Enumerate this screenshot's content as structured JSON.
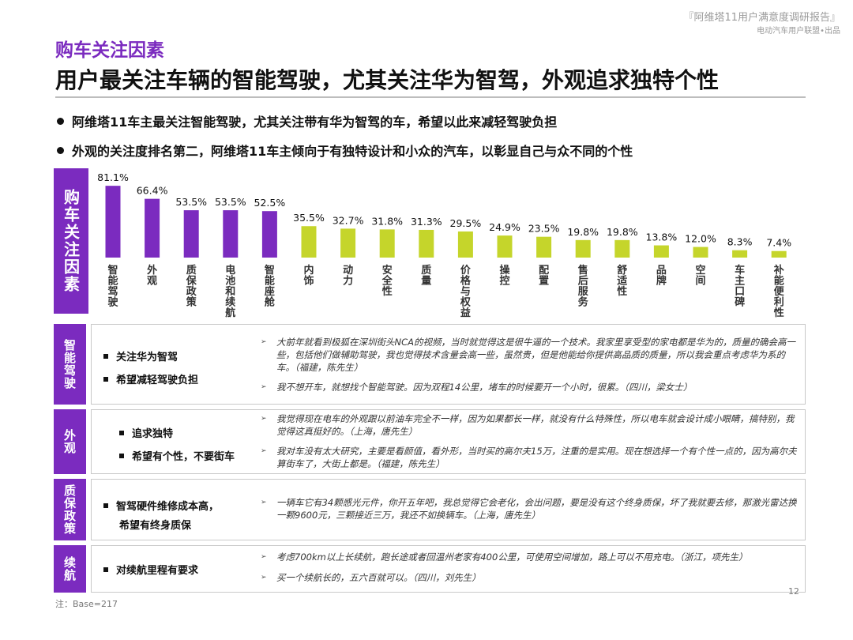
{
  "header": {
    "report_title": "『阿维塔11用户满意度调研报告』",
    "publisher": "电动汽车用户联盟•出品"
  },
  "section_label": "购车关注因素",
  "main_title": "用户最关注车辆的智能驾驶，尤其关注华为智驾，外观追求独特个性",
  "bullets": [
    "阿维塔11车主最关注智能驾驶，尤其关注带有华为智驾的车，希望以此来减轻驾驶负担",
    "外观的关注度排名第二，阿维塔11车主倾向于有独特设计和小众的汽车，以彰显自己与众不同的个性"
  ],
  "chart_side_label": "购车关注因素",
  "chart_data": {
    "type": "bar",
    "categories": [
      "智能驾驶",
      "外观",
      "质保政策",
      "电池和续航",
      "智能座舱",
      "内饰",
      "动力",
      "安全性",
      "质量",
      "价格与权益",
      "操控",
      "配置",
      "售后服务",
      "舒适性",
      "品牌",
      "空间",
      "车主口碑",
      "补能便利性"
    ],
    "values": [
      81.1,
      66.4,
      53.5,
      53.5,
      52.5,
      35.5,
      32.7,
      31.8,
      31.3,
      29.5,
      24.9,
      23.5,
      19.8,
      19.8,
      13.8,
      12.0,
      8.3,
      7.4
    ],
    "value_labels": [
      "81.1%",
      "66.4%",
      "53.5%",
      "53.5%",
      "52.5%",
      "35.5%",
      "32.7%",
      "31.8%",
      "31.3%",
      "29.5%",
      "24.9%",
      "23.5%",
      "19.8%",
      "19.8%",
      "13.8%",
      "12.0%",
      "8.3%",
      "7.4%"
    ],
    "highlight_count": 5,
    "colors": {
      "highlight": "#7b2bbf",
      "other": "#c5d52b"
    },
    "unit": "%",
    "grid": false,
    "legend": "none"
  },
  "rows": [
    {
      "tag": "智能驾驶",
      "keywords": [
        "关注华为智驾",
        "希望减轻驾驶负担"
      ],
      "quotes": [
        "大前年就看到极狐在深圳街头NCA的视频，当时就觉得这是很牛逼的一个技术。我家里享受型的家电都是华为的，质量的确会高一些，包括他们做辅助驾驶，我也觉得技术含量会高一些，虽然贵，但是他能给你提供高品质的质量，所以我会重点考虑华为系的车。（福建，陈先生）",
        "我不想开车，就想找个智能驾驶。因为双程14公里，堵车的时候要开一个小时，很累。（四川，梁女士）"
      ]
    },
    {
      "tag": "外观",
      "keywords": [
        "追求独特",
        "希望有个性，不要街车"
      ],
      "quotes": [
        "我觉得现在电车的外观跟以前油车完全不一样，因为如果都长一样，就没有什么特殊性，所以电车就会设计成小眼睛，搞特别，我觉得这真挺好的。（上海，唐先生）",
        "我对车没有太大研究，主要是看颜值，看外形，当时买的高尔夫15万，注重的是实用。现在想选择一个有个性一点的，因为高尔夫算街车了，大街上都是。（福建，陈先生）"
      ]
    },
    {
      "tag": "质保政策",
      "keywords": [
        "智驾硬件维修成本高，",
        "希望有终身质保"
      ],
      "quotes": [
        "一辆车它有34颗感光元件，你开五年吧，我总觉得它会老化，会出问题，要是没有这个终身质保，坏了我就要去修，那激光雷达换一颗9600元，三颗接近三万，我还不如换辆车。（上海，唐先生）"
      ]
    },
    {
      "tag": "续航",
      "keywords": [
        "对续航里程有要求"
      ],
      "quotes": [
        "考虑700km以上长续航，跑长途或者回温州老家有400公里，可使用空间增加，路上可以不用充电。（浙江，项先生）",
        "买一个续航长的，五六百就可以。（四川，刘先生）"
      ]
    }
  ],
  "footnote": "注：Base=217",
  "page_number": "12"
}
